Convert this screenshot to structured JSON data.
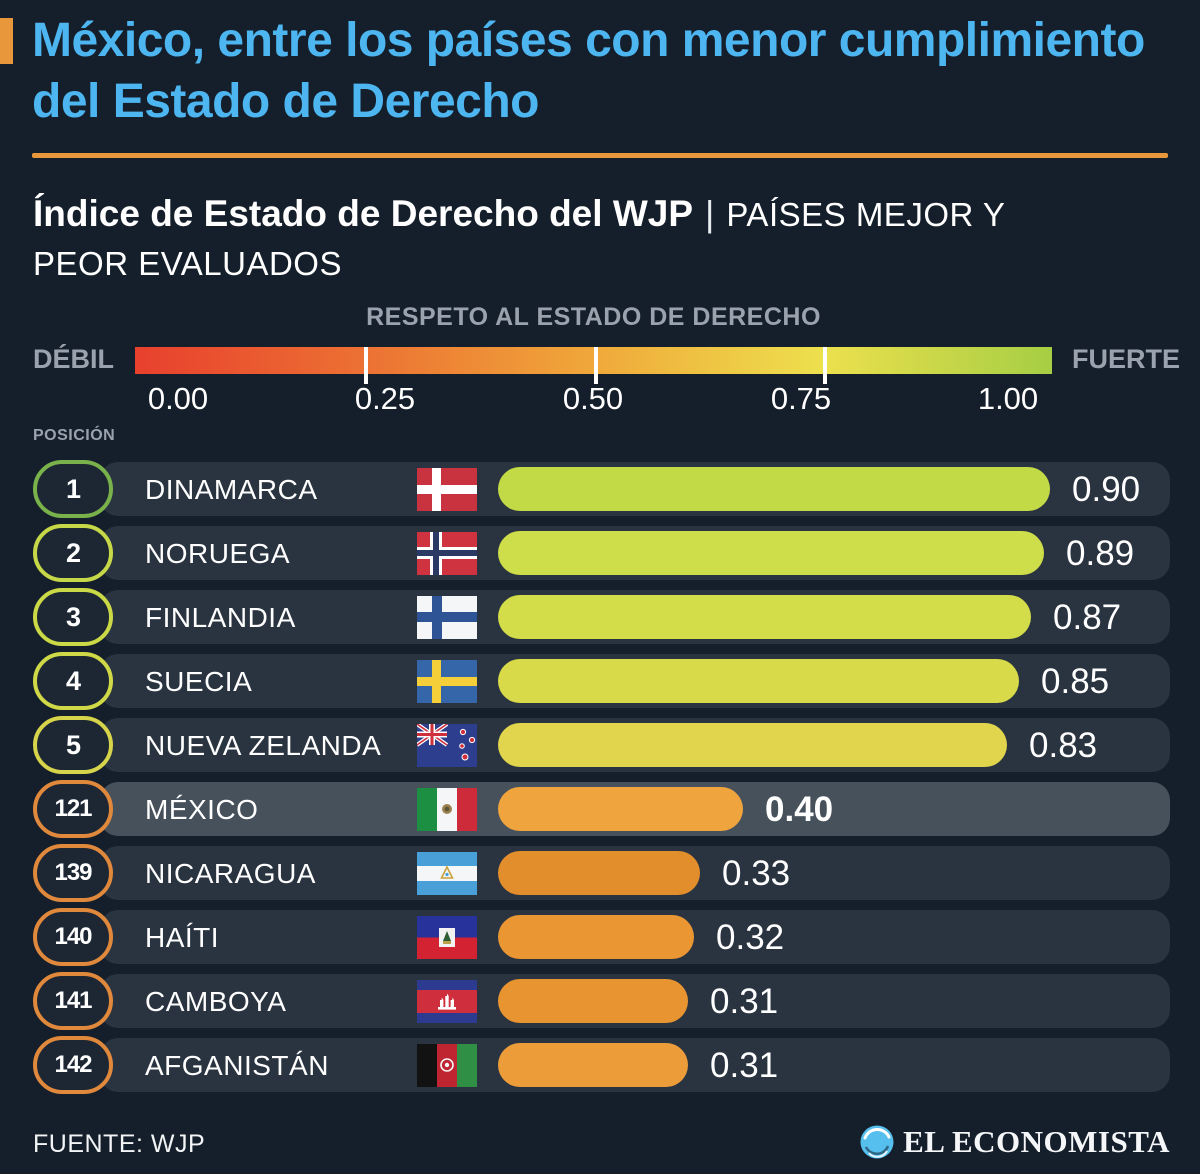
{
  "colors": {
    "background": "#151f2b",
    "title_blue": "#4db5f0",
    "accent_orange": "#e8973b",
    "row_bg": "#2a3441",
    "row_highlight_bg": "#47515c",
    "label_gray": "#9aa3ad",
    "text_white": "#ffffff"
  },
  "header": {
    "title": "México, entre los países con menor cumplimiento del Estado de Derecho"
  },
  "subtitle": {
    "main": "Índice de Estado de Derecho del WJP",
    "separator": "|",
    "qualifier_line1": "PAÍSES MEJOR Y",
    "qualifier_line2": "PEOR EVALUADOS"
  },
  "scale": {
    "title": "RESPETO AL ESTADO DE DERECHO",
    "left_label": "DÉBIL",
    "right_label": "FUERTE",
    "ticks": [
      "0.00",
      "0.25",
      "0.50",
      "0.75",
      "1.00"
    ],
    "gradient_colors": [
      "#e8402d",
      "#ec7133",
      "#f0a83a",
      "#ede04d",
      "#a6ce44"
    ]
  },
  "table": {
    "position_label": "POSICIÓN",
    "rows": [
      {
        "rank": "1",
        "country": "DINAMARCA",
        "flag": "dinamarca",
        "value": "0.90",
        "value_num": 0.9,
        "bar_color": "#c3da47",
        "badge_color": "#79b24b",
        "highlight": false
      },
      {
        "rank": "2",
        "country": "NORUEGA",
        "flag": "noruega",
        "value": "0.89",
        "value_num": 0.89,
        "bar_color": "#cedd4a",
        "badge_color": "#c6d847",
        "highlight": false
      },
      {
        "rank": "3",
        "country": "FINLANDIA",
        "flag": "finlandia",
        "value": "0.87",
        "value_num": 0.87,
        "bar_color": "#d3dc49",
        "badge_color": "#cbd946",
        "highlight": false
      },
      {
        "rank": "4",
        "country": "SUECIA",
        "flag": "suecia",
        "value": "0.85",
        "value_num": 0.85,
        "bar_color": "#d8da49",
        "badge_color": "#cfd947",
        "highlight": false
      },
      {
        "rank": "5",
        "country": "NUEVA ZELANDA",
        "flag": "nueva-zelanda",
        "value": "0.83",
        "value_num": 0.83,
        "bar_color": "#e0d54c",
        "badge_color": "#d6d44a",
        "highlight": false
      },
      {
        "rank": "121",
        "country": "MÉXICO",
        "flag": "mexico",
        "value": "0.40",
        "value_num": 0.4,
        "bar_color": "#f0a43e",
        "badge_color": "#e0883b",
        "highlight": true
      },
      {
        "rank": "139",
        "country": "NICARAGUA",
        "flag": "nicaragua",
        "value": "0.33",
        "value_num": 0.33,
        "bar_color": "#e28e2c",
        "badge_color": "#e0883b",
        "highlight": false
      },
      {
        "rank": "140",
        "country": "HAÍTI",
        "flag": "haiti",
        "value": "0.32",
        "value_num": 0.32,
        "bar_color": "#ea9733",
        "badge_color": "#e0883b",
        "highlight": false
      },
      {
        "rank": "141",
        "country": "CAMBOYA",
        "flag": "camboya",
        "value": "0.31",
        "value_num": 0.31,
        "bar_color": "#e89431",
        "badge_color": "#e0883b",
        "highlight": false
      },
      {
        "rank": "142",
        "country": "AFGANISTÁN",
        "flag": "afganistan",
        "value": "0.31",
        "value_num": 0.31,
        "bar_color": "#ec9d39",
        "badge_color": "#e0883b",
        "highlight": false
      }
    ]
  },
  "footer": {
    "source": "FUENTE: WJP",
    "brand": "EL ECONOMISTA"
  },
  "chart_data": {
    "type": "bar",
    "orientation": "horizontal",
    "title": "México, entre los países con menor cumplimiento del Estado de Derecho",
    "subtitle": "Índice de Estado de Derecho del WJP | PAÍSES MEJOR Y PEOR EVALUADOS",
    "scale_label": "RESPETO AL ESTADO DE DERECHO",
    "scale_endpoints": [
      "DÉBIL",
      "FUERTE"
    ],
    "categories": [
      "Dinamarca",
      "Noruega",
      "Finlandia",
      "Suecia",
      "Nueva Zelanda",
      "México",
      "Nicaragua",
      "Haití",
      "Camboya",
      "Afganistán"
    ],
    "ranks": [
      1,
      2,
      3,
      4,
      5,
      121,
      139,
      140,
      141,
      142
    ],
    "values": [
      0.9,
      0.89,
      0.87,
      0.85,
      0.83,
      0.4,
      0.33,
      0.32,
      0.31,
      0.31
    ],
    "xlim": [
      0,
      1
    ],
    "x_ticks": [
      0.0,
      0.25,
      0.5,
      0.75,
      1.0
    ],
    "highlighted_category": "México",
    "legend_position": "none",
    "grid": false,
    "source": "WJP"
  }
}
